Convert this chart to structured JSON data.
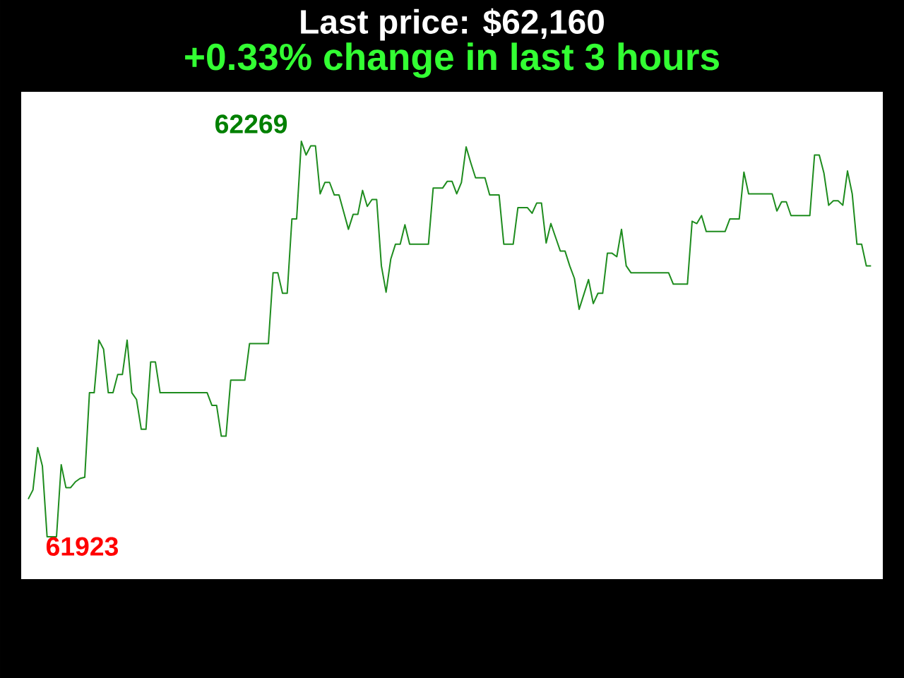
{
  "chart_data": {
    "type": "line",
    "title": "Last price: $62,160",
    "subtitle": "+0.33% change in last 3 hours",
    "categories": [
      null,
      null,
      null,
      null,
      null,
      null,
      null,
      null,
      null,
      null,
      null,
      null,
      null,
      null,
      null,
      null,
      null,
      null,
      null,
      null,
      null,
      null,
      null,
      null,
      null,
      null,
      null,
      null,
      null,
      null,
      null,
      null,
      null,
      null,
      null,
      null,
      null,
      null,
      null,
      null,
      null,
      null,
      null,
      null,
      null,
      null,
      null,
      null,
      null,
      null,
      null,
      null,
      null,
      null,
      null,
      null,
      null,
      null,
      null,
      null,
      null,
      null,
      null,
      null,
      null,
      null,
      null,
      null,
      null,
      null,
      null,
      null,
      null,
      null,
      null,
      null,
      null,
      null,
      null,
      null,
      null,
      null,
      null,
      null,
      null,
      null,
      null,
      null,
      null,
      null,
      null,
      null,
      null,
      null,
      null,
      null,
      null,
      null,
      null,
      null,
      null,
      null,
      null,
      null,
      null,
      null,
      null,
      null,
      null,
      null,
      null,
      null,
      null,
      null,
      null,
      null,
      null,
      null,
      null,
      null,
      null,
      null,
      null,
      null,
      null,
      null,
      null,
      null,
      null,
      null,
      null,
      null,
      null,
      null,
      null,
      null,
      null,
      null,
      null,
      null,
      null,
      null,
      null,
      null,
      null,
      null,
      null,
      null,
      null,
      null,
      null,
      null,
      null,
      null,
      null,
      null,
      null,
      null,
      null,
      null,
      null,
      null,
      null,
      null,
      null,
      null,
      null,
      null,
      null,
      null,
      null,
      null,
      null,
      null,
      null,
      null,
      null,
      null,
      null,
      null
    ],
    "color": "#1e8c1e",
    "values": [
      61956,
      61964,
      62001,
      61985,
      61923,
      61923,
      61923,
      61986,
      61966,
      61966,
      61971,
      61974,
      61975,
      62049,
      62049,
      62095,
      62087,
      62049,
      62049,
      62065,
      62065,
      62095,
      62049,
      62043,
      62017,
      62017,
      62076,
      62076,
      62049,
      62049,
      62049,
      62049,
      62049,
      62049,
      62049,
      62049,
      62049,
      62049,
      62049,
      62038,
      62038,
      62011,
      62011,
      62060,
      62060,
      62060,
      62060,
      62092,
      62092,
      62092,
      62092,
      62092,
      62154,
      62154,
      62136,
      62136,
      62201,
      62201,
      62269,
      62257,
      62265,
      62265,
      62223,
      62233,
      62233,
      62222,
      62222,
      62207,
      62192,
      62205,
      62205,
      62226,
      62212,
      62218,
      62218,
      62160,
      62137,
      62166,
      62179,
      62179,
      62196,
      62179,
      62179,
      62179,
      62179,
      62179,
      62228,
      62228,
      62228,
      62234,
      62234,
      62223,
      62233,
      62264,
      62250,
      62237,
      62237,
      62237,
      62222,
      62222,
      62222,
      62179,
      62179,
      62179,
      62211,
      62211,
      62211,
      62206,
      62215,
      62215,
      62180,
      62197,
      62185,
      62173,
      62173,
      62160,
      62149,
      62122,
      62135,
      62148,
      62127,
      62136,
      62136,
      62171,
      62171,
      62168,
      62192,
      62160,
      62154,
      62154,
      62154,
      62154,
      62154,
      62154,
      62154,
      62154,
      62154,
      62144,
      62144,
      62144,
      62144,
      62199,
      62197,
      62204,
      62190,
      62190,
      62190,
      62190,
      62190,
      62201,
      62201,
      62201,
      62242,
      62223,
      62223,
      62223,
      62223,
      62223,
      62223,
      62208,
      62216,
      62216,
      62204,
      62204,
      62204,
      62204,
      62204,
      62257,
      62257,
      62241,
      62213,
      62217,
      62217,
      62213,
      62243,
      62223,
      62179,
      62179,
      62160,
      62160
    ],
    "value_labels": [
      null,
      null,
      null,
      null,
      "61923",
      null,
      null,
      null,
      null,
      null,
      null,
      null,
      null,
      null,
      null,
      null,
      null,
      null,
      null,
      null,
      null,
      null,
      null,
      null,
      null,
      null,
      null,
      null,
      null,
      null,
      null,
      null,
      null,
      null,
      null,
      null,
      null,
      null,
      null,
      null,
      null,
      null,
      null,
      null,
      null,
      null,
      null,
      null,
      null,
      null,
      null,
      null,
      null,
      null,
      null,
      null,
      null,
      null,
      "62269",
      null,
      null,
      null,
      null,
      null,
      null,
      null,
      null,
      null,
      null,
      null,
      null,
      null,
      null,
      null,
      null,
      null,
      null,
      null,
      null,
      null,
      null,
      null,
      null,
      null,
      null,
      null,
      null,
      null,
      null,
      null,
      null,
      null,
      null,
      null,
      null,
      null,
      null,
      null,
      null,
      null,
      null,
      null,
      null,
      null,
      null,
      null,
      null,
      null,
      null,
      null,
      null,
      null,
      null,
      null,
      null,
      null,
      null,
      null,
      null,
      null,
      null,
      null,
      null,
      null,
      null,
      null,
      null,
      null,
      null,
      null,
      null,
      null,
      null,
      null,
      null,
      null,
      null,
      null,
      null,
      null,
      null,
      null,
      null,
      null,
      null,
      null,
      null,
      null,
      null,
      null,
      null,
      null,
      null,
      null,
      null,
      null,
      null,
      null,
      null,
      null,
      null,
      null,
      null,
      null,
      null,
      null,
      null,
      null,
      null,
      null,
      null,
      null,
      null,
      null,
      null,
      null,
      null,
      null,
      null,
      null
    ]
  }
}
